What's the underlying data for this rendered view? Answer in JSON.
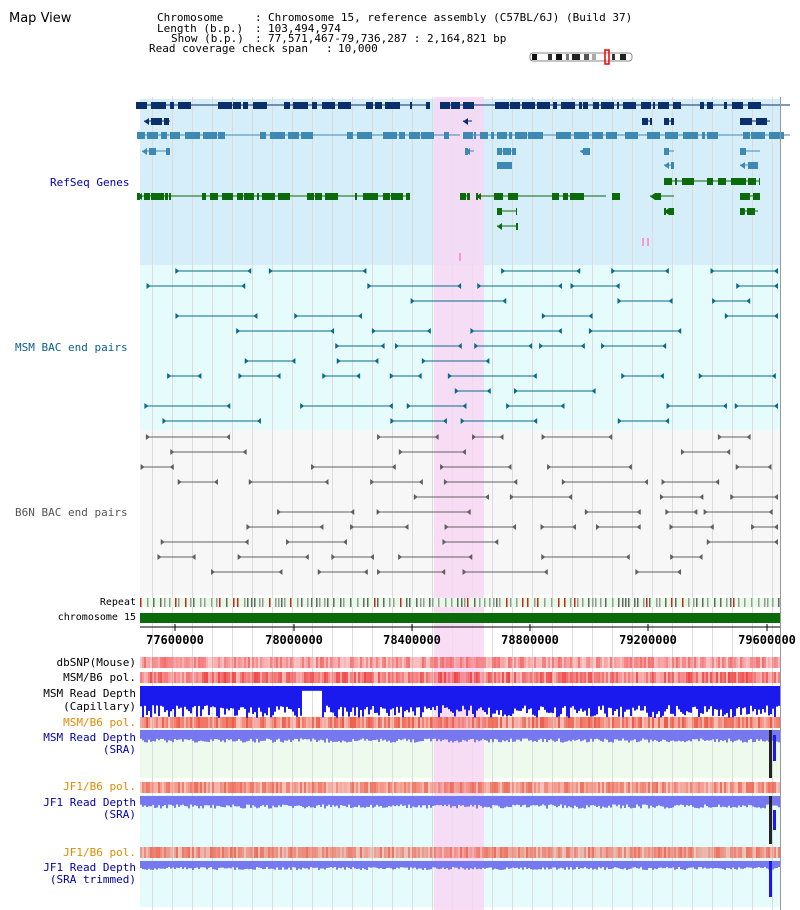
{
  "page_title": "Map View",
  "header": {
    "chromosome_label": "Chromosome",
    "chromosome_value": "Chromosome 15, reference assembly (C57BL/6J) (Build 37)",
    "length_label": "Length (b.p.)",
    "length_value": "103,494,974",
    "show_label": "Show (b.p.)",
    "show_value": "77,571,467-79,736,287 : 2,164,821 bp",
    "coverage_label": "Read coverage check span",
    "coverage_value": "10,000"
  },
  "tracks": {
    "refseq": "RefSeq Genes",
    "msm_bac": "MSM BAC end pairs",
    "b6n_bac": "B6N BAC end pairs",
    "repeat": "Repeat",
    "chromosome": "chromosome 15",
    "dbsnp": "dbSNP(Mouse)",
    "msm_b6_pol_1": "MSM/B6 pol.",
    "msm_read_depth_cap_1": "MSM Read Depth",
    "msm_read_depth_cap_2": "(Capillary)",
    "msm_b6_pol_2": "MSM/B6 pol.",
    "msm_read_depth_sra_1": "MSM Read Depth",
    "msm_read_depth_sra_2": "(SRA)",
    "jf1_b6_pol_1": "JF1/B6 pol.",
    "jf1_read_depth_sra_1": "JF1 Read Depth",
    "jf1_read_depth_sra_2": "(SRA)",
    "jf1_b6_pol_2": "JF1/B6 pol.",
    "jf1_read_depth_trim_1": "JF1 Read Depth",
    "jf1_read_depth_trim_2": "(SRA trimmed)"
  },
  "axis_ticks": [
    "77600000",
    "78000000",
    "78400000",
    "78800000",
    "79200000",
    "79600000"
  ],
  "colors": {
    "refseq_bg": "#d6eefa",
    "bac_bg": "#e6fbfb",
    "highlight": "#f7d7f3",
    "gene_dark": "#0b2f6b",
    "gene_mid": "#3e89b3",
    "gene_green": "#0b6b0b",
    "chrom_green": "#0b6b0b",
    "depth_blue": "#1a1aee",
    "depth_violet": "#7777f0"
  }
}
